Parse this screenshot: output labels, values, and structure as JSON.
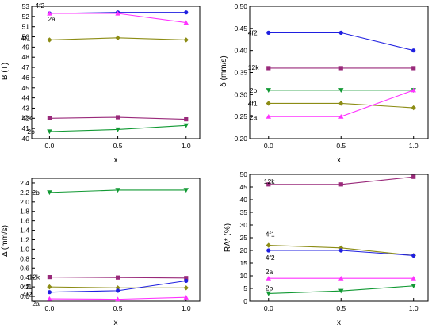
{
  "colors": {
    "4f2": "#1f1fe0",
    "2a": "#ff33ff",
    "4f1": "#8c8c14",
    "12k": "#99297a",
    "2b": "#119933"
  },
  "chart_data": [
    {
      "type": "line",
      "xlabel": "x",
      "ylabel": "B (T)",
      "x": [
        0.0,
        0.5,
        1.0
      ],
      "xticks": [
        "0.0",
        "0.5",
        "1.0"
      ],
      "ylim": [
        40,
        53
      ],
      "yticks": [
        "40",
        "41",
        "42",
        "43",
        "44",
        "45",
        "46",
        "47",
        "48",
        "49",
        "50",
        "51",
        "52",
        "53"
      ],
      "series": [
        {
          "name": "4f2",
          "marker": "circle",
          "values": [
            52.3,
            52.4,
            52.4
          ]
        },
        {
          "name": "2a",
          "marker": "triangle-up",
          "values": [
            52.3,
            52.3,
            51.4
          ]
        },
        {
          "name": "4f1",
          "marker": "diamond",
          "values": [
            49.7,
            49.9,
            49.7
          ]
        },
        {
          "name": "12k",
          "marker": "square",
          "values": [
            42.0,
            42.1,
            41.9
          ]
        },
        {
          "name": "2b",
          "marker": "triangle-down",
          "values": [
            40.7,
            40.9,
            41.3
          ]
        }
      ]
    },
    {
      "type": "line",
      "xlabel": "x",
      "ylabel": "δ (mm/s)",
      "x": [
        0.0,
        0.5,
        1.0
      ],
      "xticks": [
        "0.0",
        "0.5",
        "1.0"
      ],
      "ylim": [
        0.2,
        0.5
      ],
      "yticks": [
        "0.20",
        "0.25",
        "0.30",
        "0.35",
        "0.40",
        "0.45",
        "0.50"
      ],
      "series": [
        {
          "name": "4f2",
          "marker": "circle",
          "values": [
            0.44,
            0.44,
            0.4
          ]
        },
        {
          "name": "12k",
          "marker": "square",
          "values": [
            0.36,
            0.36,
            0.36
          ]
        },
        {
          "name": "2b",
          "marker": "triangle-down",
          "values": [
            0.31,
            0.31,
            0.31
          ]
        },
        {
          "name": "4f1",
          "marker": "diamond",
          "values": [
            0.28,
            0.28,
            0.27
          ]
        },
        {
          "name": "2a",
          "marker": "triangle-up",
          "values": [
            0.25,
            0.25,
            0.31
          ]
        }
      ]
    },
    {
      "type": "line",
      "xlabel": "x",
      "ylabel": "Δ (mm/s)",
      "x": [
        0.0,
        0.5,
        1.0
      ],
      "xticks": [
        "0.0",
        "0.5",
        "1.0"
      ],
      "ylim": [
        -0.1,
        2.5
      ],
      "yticks": [
        "0.0",
        "0.2",
        "0.4",
        "0.6",
        "0.8",
        "1.0",
        "1.2",
        "1.4",
        "1.6",
        "1.8",
        "2.0",
        "2.2",
        "2.4"
      ],
      "series": [
        {
          "name": "2b",
          "marker": "triangle-down",
          "values": [
            2.2,
            2.25,
            2.25
          ]
        },
        {
          "name": "12k",
          "marker": "square",
          "values": [
            0.41,
            0.4,
            0.39
          ]
        },
        {
          "name": "4f1",
          "marker": "diamond",
          "values": [
            0.2,
            0.18,
            0.18
          ]
        },
        {
          "name": "4f2",
          "marker": "circle",
          "values": [
            0.09,
            0.12,
            0.33
          ]
        },
        {
          "name": "2a",
          "marker": "triangle-up",
          "values": [
            -0.05,
            -0.06,
            -0.02
          ]
        }
      ]
    },
    {
      "type": "line",
      "xlabel": "x",
      "ylabel": "RA* (%)",
      "x": [
        0.0,
        0.5,
        1.0
      ],
      "xticks": [
        "0.0",
        "0.5",
        "1.0"
      ],
      "ylim": [
        0,
        50
      ],
      "yticks": [
        "0",
        "5",
        "10",
        "15",
        "20",
        "25",
        "30",
        "35",
        "40",
        "45",
        "50"
      ],
      "series": [
        {
          "name": "12k",
          "marker": "square",
          "values": [
            46,
            46,
            49
          ]
        },
        {
          "name": "4f1",
          "marker": "diamond",
          "values": [
            22,
            21,
            18
          ]
        },
        {
          "name": "4f2",
          "marker": "circle",
          "values": [
            20,
            20,
            18
          ]
        },
        {
          "name": "2a",
          "marker": "triangle-up",
          "values": [
            9,
            9,
            9
          ]
        },
        {
          "name": "2b",
          "marker": "triangle-down",
          "values": [
            3,
            4,
            6
          ]
        }
      ]
    }
  ]
}
